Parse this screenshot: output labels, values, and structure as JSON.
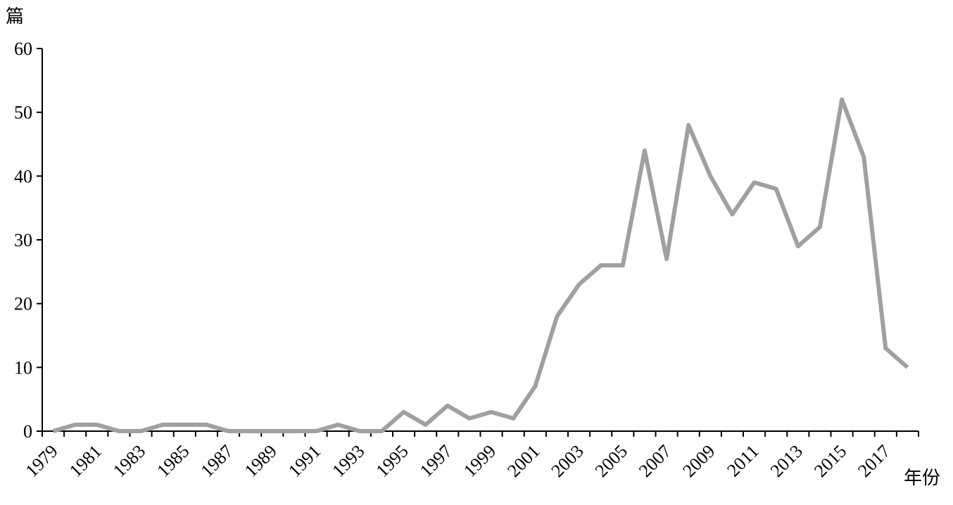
{
  "chart_data": {
    "type": "line",
    "y_label": "篇",
    "x_label": "年份",
    "categories": [
      "1979",
      null,
      "1981",
      null,
      "1983",
      null,
      "1985",
      null,
      "1987",
      null,
      "1989",
      null,
      "1991",
      null,
      "1993",
      null,
      "1995",
      null,
      "1997",
      null,
      "1999",
      null,
      "2001",
      null,
      "2003",
      null,
      "2005",
      null,
      "2007",
      null,
      "2009",
      null,
      "2011",
      null,
      "2013",
      null,
      "2015",
      null,
      "2017",
      null
    ],
    "series": [
      {
        "name": null,
        "color": "#a0a0a0",
        "values": [
          0,
          1,
          1,
          0,
          0,
          1,
          1,
          1,
          0,
          0,
          0,
          0,
          0,
          1,
          0,
          0,
          3,
          1,
          4,
          2,
          3,
          2,
          7,
          18,
          23,
          26,
          26,
          44,
          27,
          48,
          40,
          34,
          39,
          38,
          29,
          32,
          52,
          43,
          13,
          10
        ]
      }
    ],
    "ylim": [
      0,
      60
    ],
    "yticks": [
      0,
      10,
      20,
      30,
      40,
      50,
      60
    ],
    "grid": false
  }
}
